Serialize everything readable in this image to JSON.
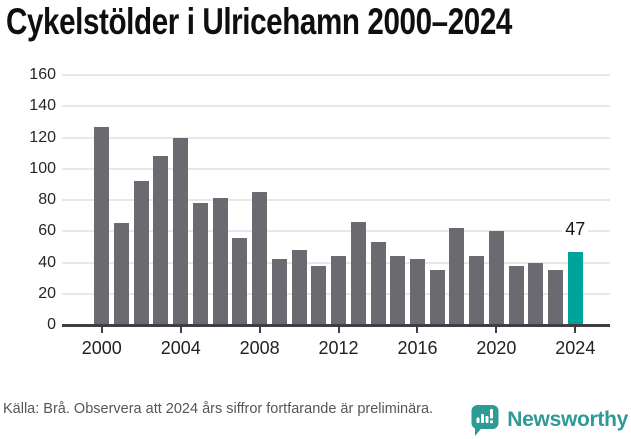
{
  "header": {
    "title": "Cykelstölder i Ulricehamn 2000–2024"
  },
  "chart_data": {
    "type": "bar",
    "title": "Cykelstölder i Ulricehamn 2000–2024",
    "categories": [
      2000,
      2001,
      2002,
      2003,
      2004,
      2005,
      2006,
      2007,
      2008,
      2009,
      2010,
      2011,
      2012,
      2013,
      2014,
      2015,
      2016,
      2017,
      2018,
      2019,
      2020,
      2021,
      2022,
      2023,
      2024
    ],
    "values": [
      127,
      65,
      92,
      108,
      120,
      78,
      81,
      56,
      85,
      42,
      48,
      38,
      44,
      66,
      53,
      44,
      42,
      35,
      62,
      44,
      60,
      38,
      40,
      35,
      47
    ],
    "highlight_index": 24,
    "annotation": {
      "text": "47",
      "index": 24
    },
    "ylim": [
      0,
      160
    ],
    "yticks": [
      0,
      20,
      40,
      60,
      80,
      100,
      120,
      140,
      160
    ],
    "xticks": [
      2000,
      2004,
      2008,
      2012,
      2016,
      2020,
      2024
    ],
    "grid": true,
    "legend": "none",
    "bar_color": "#6a6a70",
    "highlight_color": "#00a39b",
    "grid_color": "#e8e8e8",
    "axis_color": "#3f3f43"
  },
  "footer": {
    "source": "Källa: Brå. Observera att 2024 års siffror fortfarande är preliminära.",
    "brand": "Newsworthy",
    "brand_color": "#2e9a96"
  }
}
